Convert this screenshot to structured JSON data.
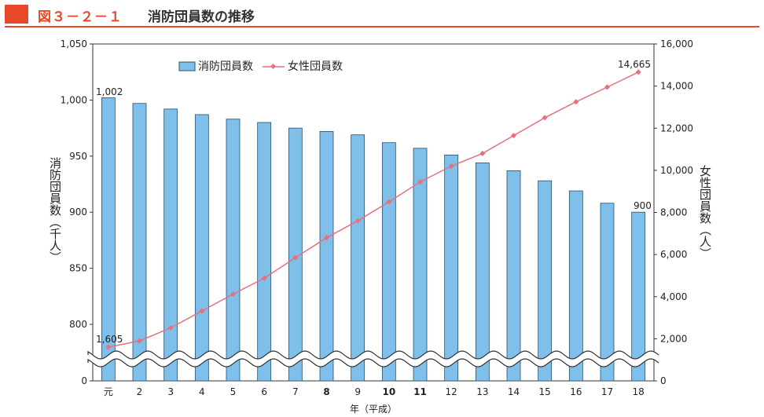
{
  "header": {
    "figure_label": "図３－２－１",
    "title": "消防団員数の推移"
  },
  "chart_data": {
    "type": "bar+line",
    "categories": [
      "元",
      "2",
      "3",
      "4",
      "5",
      "6",
      "7",
      "8",
      "9",
      "10",
      "11",
      "12",
      "13",
      "14",
      "15",
      "16",
      "17",
      "18"
    ],
    "bold_categories": [
      "8",
      "10",
      "11"
    ],
    "xlabel": "年（平成）",
    "series": [
      {
        "name": "消防団員数",
        "type": "bar",
        "axis": "left",
        "color": "#7ec0ea",
        "values": [
          1002,
          997,
          992,
          987,
          983,
          980,
          975,
          972,
          969,
          962,
          957,
          951,
          944,
          937,
          928,
          919,
          908,
          900
        ]
      },
      {
        "name": "女性団員数",
        "type": "line",
        "axis": "right",
        "color": "#e8707e",
        "values": [
          1605,
          1900,
          2520,
          3320,
          4120,
          4880,
          5850,
          6800,
          7600,
          8500,
          9450,
          10200,
          10800,
          11650,
          12500,
          13250,
          13950,
          14665
        ]
      }
    ],
    "y_left": {
      "label": "消防団員数（千人）",
      "ticks": [
        "1,050",
        "1,000",
        "950",
        "900",
        "850",
        "800",
        "0"
      ],
      "tick_values": [
        1050,
        1000,
        950,
        900,
        850,
        800
      ],
      "range": [
        770,
        1050
      ],
      "zero_label": "0",
      "broken": true
    },
    "y_right": {
      "label": "女性団員数（人）",
      "ticks": [
        "16,000",
        "14,000",
        "12,000",
        "10,000",
        "8,000",
        "6,000",
        "4,000",
        "2,000",
        "0"
      ],
      "tick_values": [
        16000,
        14000,
        12000,
        10000,
        8000,
        6000,
        4000,
        2000,
        0
      ],
      "range": [
        0,
        16000
      ]
    },
    "annotations": [
      "1,002",
      "1,605",
      "900",
      "14,665"
    ],
    "legend": {
      "bar_label": "消防団員数",
      "line_label": "女性団員数",
      "placement": "top-center"
    }
  }
}
